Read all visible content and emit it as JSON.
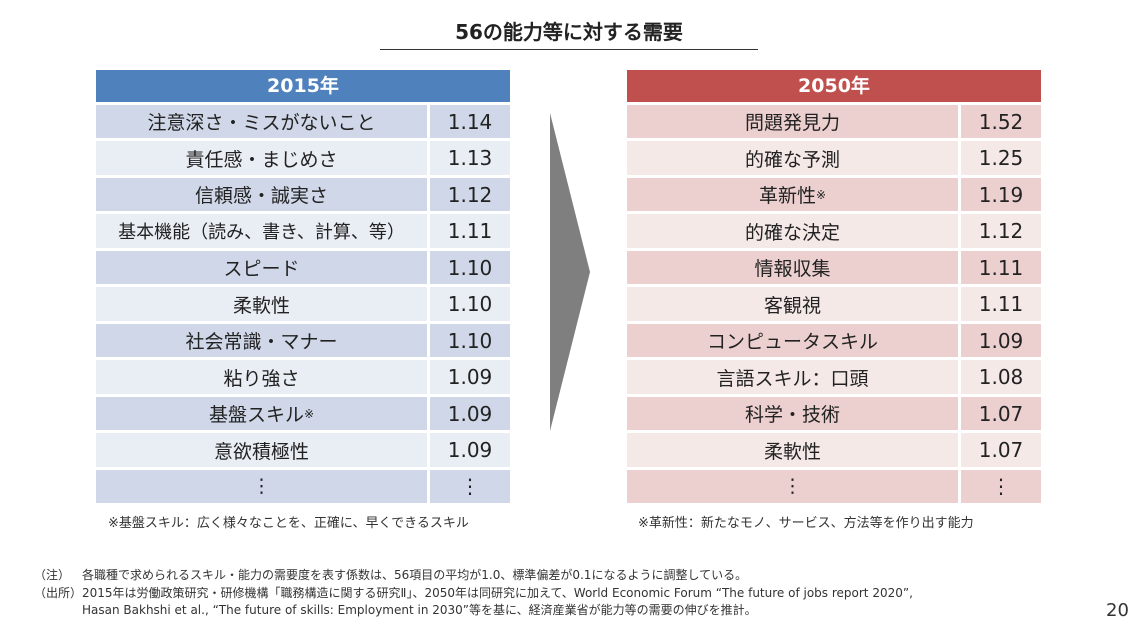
{
  "title": "56の能力等に対する需要",
  "left_table": {
    "header": "2015年",
    "rows": [
      {
        "label": "注意深さ・ミスがないこと",
        "value": "1.14"
      },
      {
        "label": "責任感・まじめさ",
        "value": "1.13"
      },
      {
        "label": "信頼感・誠実さ",
        "value": "1.12"
      },
      {
        "label": "基本機能（読み、書き、計算、等）",
        "value": "1.11"
      },
      {
        "label": "スピード",
        "value": "1.10"
      },
      {
        "label": "柔軟性",
        "value": "1.10"
      },
      {
        "label": "社会常識・マナー",
        "value": "1.10"
      },
      {
        "label": "粘り強さ",
        "value": "1.09"
      },
      {
        "label": "基盤スキル",
        "value": "1.09",
        "mark": "※"
      },
      {
        "label": "意欲積極性",
        "value": "1.09"
      },
      {
        "label": "⋮",
        "value": "⋮"
      }
    ],
    "note": "※基盤スキル：広く様々なことを、正確に、早くできるスキル"
  },
  "right_table": {
    "header": "2050年",
    "rows": [
      {
        "label": "問題発見力",
        "value": "1.52"
      },
      {
        "label": "的確な予測",
        "value": "1.25"
      },
      {
        "label": "革新性",
        "value": "1.19",
        "mark": "※"
      },
      {
        "label": "的確な決定",
        "value": "1.12"
      },
      {
        "label": "情報収集",
        "value": "1.11"
      },
      {
        "label": "客観視",
        "value": "1.11"
      },
      {
        "label": "コンピュータスキル",
        "value": "1.09"
      },
      {
        "label": "言語スキル：口頭",
        "value": "1.08"
      },
      {
        "label": "科学・技術",
        "value": "1.07"
      },
      {
        "label": "柔軟性",
        "value": "1.07"
      },
      {
        "label": "⋮",
        "value": "⋮"
      }
    ],
    "note": "※革新性：新たなモノ、サービス、方法等を作り出す能力"
  },
  "footnotes": [
    {
      "tag": "（注）",
      "lines": [
        "各職種で求められるスキル・能力の需要度を表す係数は、56項目の平均が1.0、標準偏差が0.1になるように調整している。"
      ]
    },
    {
      "tag": "（出所）",
      "lines": [
        "2015年は労働政策研究・研修機構「職務構造に関する研究Ⅱ」、2050年は同研究に加えて、World Economic Forum “The future of jobs report 2020”,",
        "Hasan Bakhshi et al., “The future of skills: Employment in 2030”等を基に、経済産業省が能力等の需要の伸びを推計。"
      ]
    }
  ],
  "page_number": "20",
  "colors": {
    "left_header": "#4f81bd",
    "right_header": "#c0504d",
    "arrow": "#7f7f7f"
  }
}
